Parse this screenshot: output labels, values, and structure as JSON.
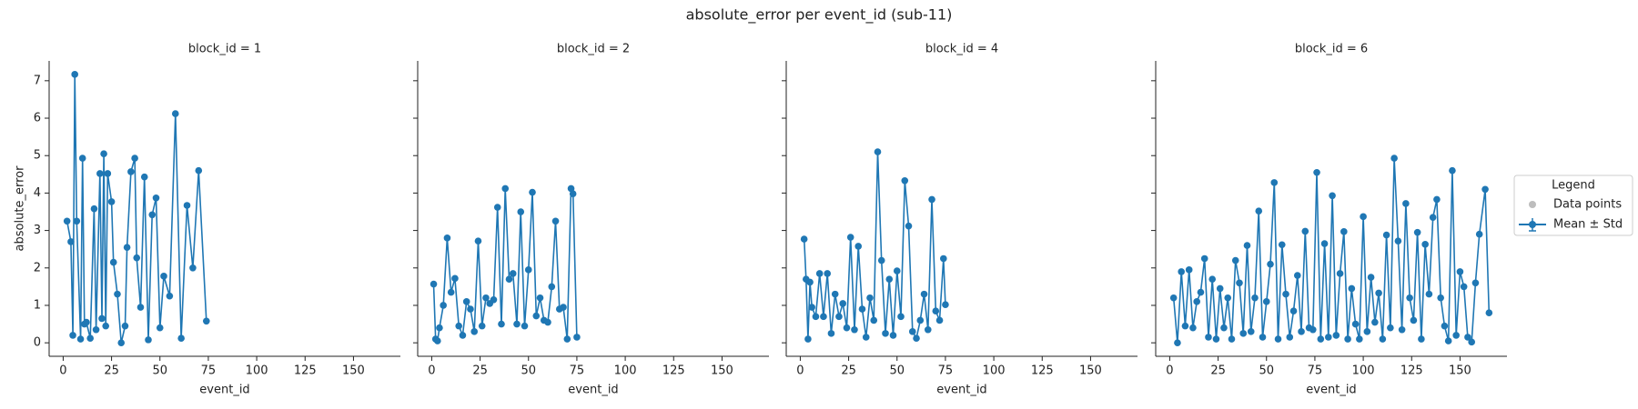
{
  "title": "absolute_error per event_id (sub-11)",
  "legend": {
    "title": "Legend",
    "entries": [
      {
        "label": "Data points",
        "color": "#bdbdbd"
      },
      {
        "label": "Mean ± Std",
        "color": "#1f77b4"
      }
    ]
  },
  "chart_data": [
    {
      "type": "line",
      "title": "block_id = 1",
      "x_label": "event_id",
      "y_label": "absolute_error",
      "color": "#1f77b4",
      "xlim": [
        -7.25,
        174.25
      ],
      "ylim": [
        -0.36,
        7.53
      ],
      "xticks": [
        0,
        25,
        50,
        75,
        100,
        125,
        150
      ],
      "yticks": [
        0,
        1,
        2,
        3,
        4,
        5,
        6,
        7
      ],
      "x": [
        2,
        4,
        5,
        6,
        7,
        9,
        10,
        11,
        12,
        14,
        16,
        17,
        19,
        20,
        21,
        22,
        23,
        25,
        26,
        28,
        30,
        32,
        33,
        35,
        37,
        38,
        40,
        42,
        44,
        46,
        48,
        50,
        52,
        55,
        58,
        61,
        64,
        67,
        70,
        74
      ],
      "values": [
        3.25,
        2.7,
        0.2,
        7.17,
        3.25,
        0.1,
        4.93,
        0.5,
        0.55,
        0.12,
        3.58,
        0.35,
        4.52,
        0.65,
        5.05,
        0.45,
        4.52,
        3.77,
        2.15,
        1.3,
        0.0,
        0.45,
        2.55,
        4.57,
        4.93,
        2.27,
        0.95,
        4.43,
        0.08,
        3.42,
        3.87,
        0.4,
        1.78,
        1.25,
        6.12,
        0.12,
        3.67,
        2.0,
        4.6,
        0.58
      ]
    },
    {
      "type": "line",
      "title": "block_id = 2",
      "x_label": "event_id",
      "color": "#1f77b4",
      "xlim": [
        -7.25,
        174.25
      ],
      "ylim": [
        -0.36,
        7.53
      ],
      "xticks": [
        0,
        25,
        50,
        75,
        100,
        125,
        150
      ],
      "yticks": [
        0,
        1,
        2,
        3,
        4,
        5,
        6,
        7
      ],
      "x": [
        1,
        2,
        3,
        4,
        6,
        8,
        10,
        12,
        14,
        16,
        18,
        20,
        22,
        24,
        26,
        28,
        30,
        32,
        34,
        36,
        38,
        40,
        42,
        44,
        46,
        48,
        50,
        52,
        54,
        56,
        58,
        60,
        62,
        64,
        66,
        68,
        70,
        72,
        73,
        75
      ],
      "values": [
        1.57,
        0.1,
        0.05,
        0.4,
        1.0,
        2.8,
        1.35,
        1.72,
        0.45,
        0.2,
        1.1,
        0.9,
        0.3,
        2.72,
        0.45,
        1.2,
        1.05,
        1.15,
        3.62,
        0.5,
        4.12,
        1.7,
        1.85,
        0.5,
        3.5,
        0.45,
        1.95,
        4.02,
        0.72,
        1.2,
        0.6,
        0.55,
        1.5,
        3.25,
        0.9,
        0.95,
        0.1,
        4.12,
        3.98,
        0.15
      ]
    },
    {
      "type": "line",
      "title": "block_id = 4",
      "x_label": "event_id",
      "color": "#1f77b4",
      "xlim": [
        -7.25,
        174.25
      ],
      "ylim": [
        -0.36,
        7.53
      ],
      "xticks": [
        0,
        25,
        50,
        75,
        100,
        125,
        150
      ],
      "yticks": [
        0,
        1,
        2,
        3,
        4,
        5,
        6,
        7
      ],
      "x": [
        2,
        3,
        4,
        5,
        6,
        8,
        10,
        12,
        14,
        16,
        18,
        20,
        22,
        24,
        26,
        28,
        30,
        32,
        34,
        36,
        38,
        40,
        42,
        44,
        46,
        48,
        50,
        52,
        54,
        56,
        58,
        60,
        62,
        64,
        66,
        68,
        70,
        72,
        74,
        75
      ],
      "values": [
        2.77,
        1.7,
        0.1,
        1.62,
        0.95,
        0.7,
        1.85,
        0.7,
        1.85,
        0.25,
        1.3,
        0.7,
        1.05,
        0.4,
        2.82,
        0.35,
        2.58,
        0.9,
        0.15,
        1.2,
        0.6,
        5.1,
        2.2,
        0.25,
        1.7,
        0.2,
        1.92,
        0.7,
        4.33,
        3.12,
        0.3,
        0.12,
        0.6,
        1.3,
        0.35,
        3.83,
        0.85,
        0.6,
        2.25,
        1.02
      ]
    },
    {
      "type": "line",
      "title": "block_id = 6",
      "x_label": "event_id",
      "color": "#1f77b4",
      "xlim": [
        -7.25,
        174.25
      ],
      "ylim": [
        -0.36,
        7.53
      ],
      "xticks": [
        0,
        25,
        50,
        75,
        100,
        125,
        150
      ],
      "yticks": [
        0,
        1,
        2,
        3,
        4,
        5,
        6,
        7
      ],
      "x": [
        2,
        4,
        6,
        8,
        10,
        12,
        14,
        16,
        18,
        20,
        22,
        24,
        26,
        28,
        30,
        32,
        34,
        36,
        38,
        40,
        42,
        44,
        46,
        48,
        50,
        52,
        54,
        56,
        58,
        60,
        62,
        64,
        66,
        68,
        70,
        72,
        74,
        76,
        78,
        80,
        82,
        84,
        86,
        88,
        90,
        92,
        94,
        96,
        98,
        100,
        102,
        104,
        106,
        108,
        110,
        112,
        114,
        116,
        118,
        120,
        122,
        124,
        126,
        128,
        130,
        132,
        134,
        136,
        138,
        140,
        142,
        144,
        146,
        148,
        150,
        152,
        154,
        156,
        158,
        160,
        163,
        165
      ],
      "values": [
        1.2,
        0.0,
        1.9,
        0.45,
        1.95,
        0.4,
        1.1,
        1.35,
        2.25,
        0.15,
        1.7,
        0.1,
        1.45,
        0.4,
        1.2,
        0.1,
        2.2,
        1.6,
        0.25,
        2.6,
        0.3,
        1.2,
        3.52,
        0.15,
        1.1,
        2.1,
        4.28,
        0.1,
        2.62,
        1.3,
        0.15,
        0.85,
        1.8,
        0.3,
        2.98,
        0.4,
        0.35,
        4.55,
        0.1,
        2.65,
        0.15,
        3.93,
        0.2,
        1.85,
        2.97,
        0.1,
        1.45,
        0.5,
        0.1,
        3.37,
        0.3,
        1.75,
        0.55,
        1.33,
        0.1,
        2.88,
        0.4,
        4.93,
        2.72,
        0.35,
        3.72,
        1.2,
        0.6,
        2.95,
        0.1,
        2.63,
        1.3,
        3.35,
        3.83,
        1.2,
        0.45,
        0.05,
        4.6,
        0.2,
        1.9,
        1.5,
        0.15,
        0.02,
        1.6,
        2.9,
        4.1,
        0.8
      ]
    }
  ]
}
